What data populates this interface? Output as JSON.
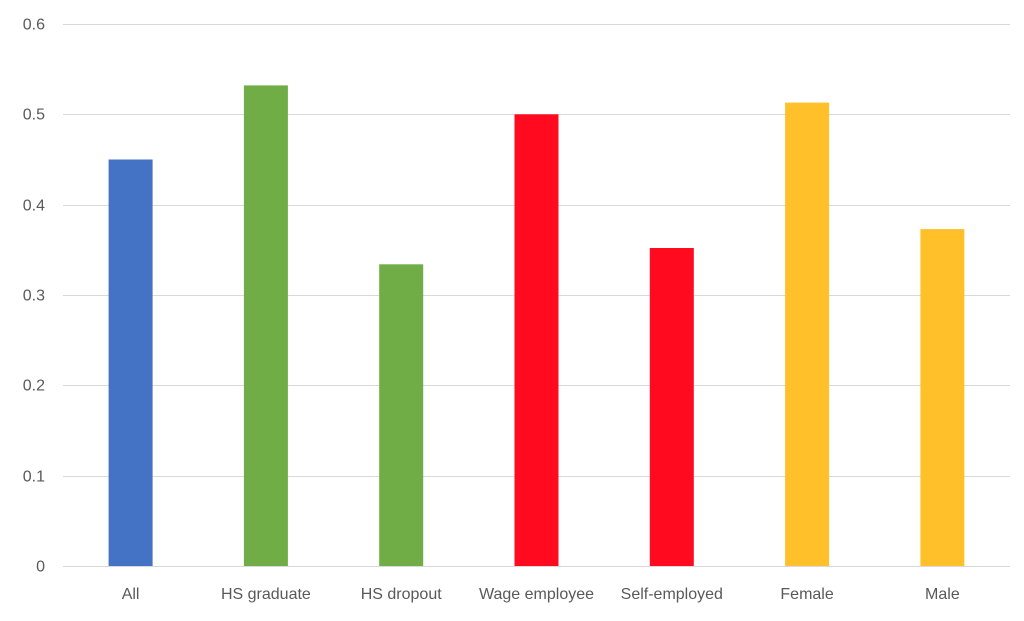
{
  "chart_data": {
    "type": "bar",
    "title": "",
    "xlabel": "",
    "ylabel": "",
    "ylim": [
      0,
      0.6
    ],
    "yticks": [
      0,
      0.1,
      0.2,
      0.3,
      0.4,
      0.5,
      0.6
    ],
    "ytick_labels": [
      "0",
      "0.1",
      "0.2",
      "0.3",
      "0.4",
      "0.5",
      "0.6"
    ],
    "grid": true,
    "categories": [
      "All",
      "HS graduate",
      "HS dropout",
      "Wage employee",
      "Self-employed",
      "Female",
      "Male"
    ],
    "values": [
      0.45,
      0.532,
      0.334,
      0.5,
      0.352,
      0.513,
      0.373
    ],
    "bar_colors": [
      "#4472C4",
      "#70AD47",
      "#70AD47",
      "#FF0A1E",
      "#FF0A1E",
      "#FFC02A",
      "#FFC02A"
    ]
  }
}
